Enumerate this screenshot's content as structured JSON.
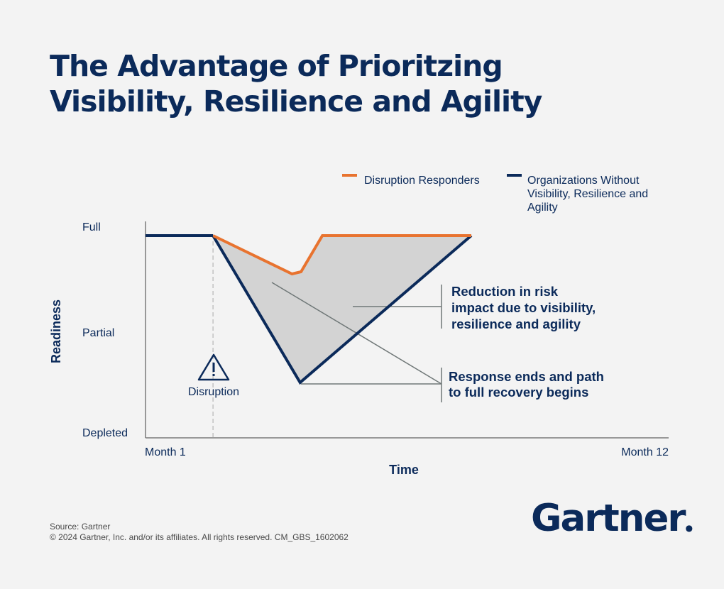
{
  "title": {
    "line1": "The Advantage of Prioritzing",
    "line2": "Visibility, Resilience and Agility"
  },
  "chart_data": {
    "type": "line",
    "xlabel": "Time",
    "ylabel": "Readiness",
    "x_range": [
      1,
      12
    ],
    "x_ticks": [
      {
        "value": 1,
        "label": "Month 1"
      },
      {
        "value": 12,
        "label": "Month 12"
      }
    ],
    "y_range": [
      0,
      1
    ],
    "y_ticks": [
      {
        "value": 1,
        "label": "Full"
      },
      {
        "value": 0.5,
        "label": "Partial"
      },
      {
        "value": 0,
        "label": "Depleted"
      }
    ],
    "grid": false,
    "legend_position": "top-right",
    "series": [
      {
        "name": "Disruption Responders",
        "color": "#e8732f",
        "points": [
          [
            1.0,
            0.95
          ],
          [
            2.42,
            0.95
          ],
          [
            4.08,
            0.77
          ],
          [
            4.27,
            0.78
          ],
          [
            4.72,
            0.95
          ],
          [
            7.85,
            0.95
          ]
        ]
      },
      {
        "name": "Organizations Without Visibility, Resilience and Agility",
        "color": "#0b2a5a",
        "points": [
          [
            1.0,
            0.95
          ],
          [
            2.42,
            0.95
          ],
          [
            4.25,
            0.26
          ],
          [
            7.85,
            0.95
          ]
        ]
      }
    ],
    "shaded_area": {
      "between": [
        "Disruption Responders",
        "Organizations Without Visibility, Resilience and Agility"
      ],
      "color": "#d3d3d3"
    },
    "event": {
      "label": "Disruption",
      "x": 2.42,
      "icon": "warning-triangle-icon"
    },
    "annotations": [
      {
        "id": "reduction",
        "lines": [
          "Reduction in risk",
          "impact due to visibility,",
          "resilience and agility"
        ]
      },
      {
        "id": "response",
        "lines": [
          "Response ends and path",
          "to full recovery begins"
        ]
      }
    ]
  },
  "source": "Source: Gartner",
  "copyright": "© 2024 Gartner, Inc. and/or its affiliates. All rights reserved. CM_GBS_1602062",
  "logo": {
    "text": "Gartner",
    "mark": "."
  }
}
